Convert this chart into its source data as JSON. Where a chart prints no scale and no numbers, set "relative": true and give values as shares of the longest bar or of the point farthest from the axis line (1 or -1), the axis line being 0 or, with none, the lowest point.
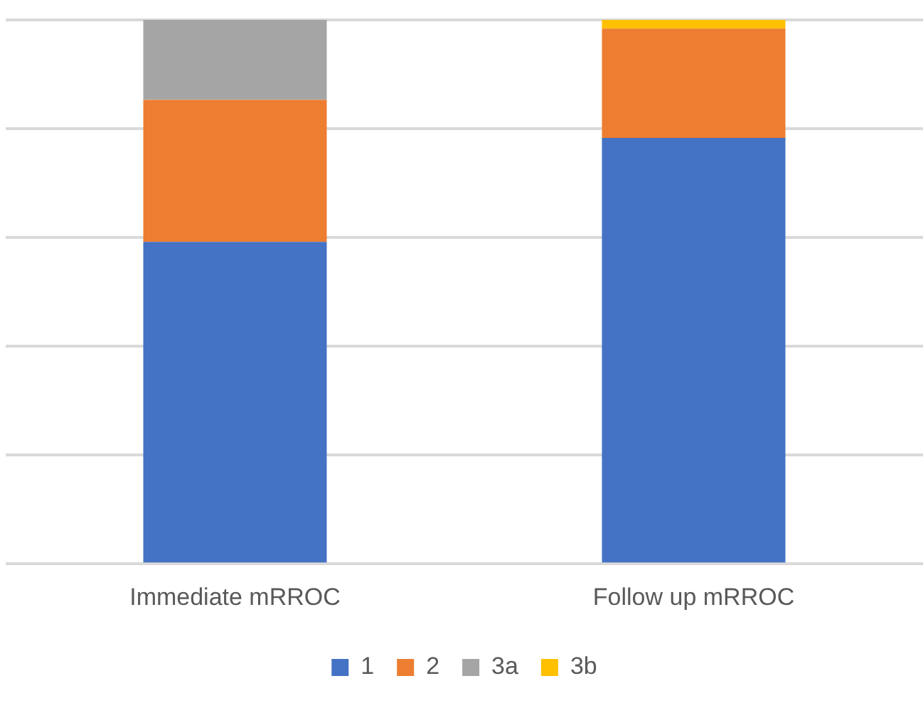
{
  "chart_data": {
    "type": "bar",
    "stacked": true,
    "relative": true,
    "categories": [
      "Immediate mRROC",
      "Follow up mRROC"
    ],
    "series": [
      {
        "name": "1",
        "color": "#4472c4",
        "values": [
          0.592,
          0.783
        ]
      },
      {
        "name": "2",
        "color": "#ed7d31",
        "values": [
          0.261,
          0.201
        ]
      },
      {
        "name": "3a",
        "color": "#a5a5a5",
        "values": [
          0.147,
          null
        ]
      },
      {
        "name": "3b",
        "color": "#ffc000",
        "values": [
          null,
          0.016
        ]
      }
    ],
    "grid": "y",
    "legend": "bottom"
  }
}
